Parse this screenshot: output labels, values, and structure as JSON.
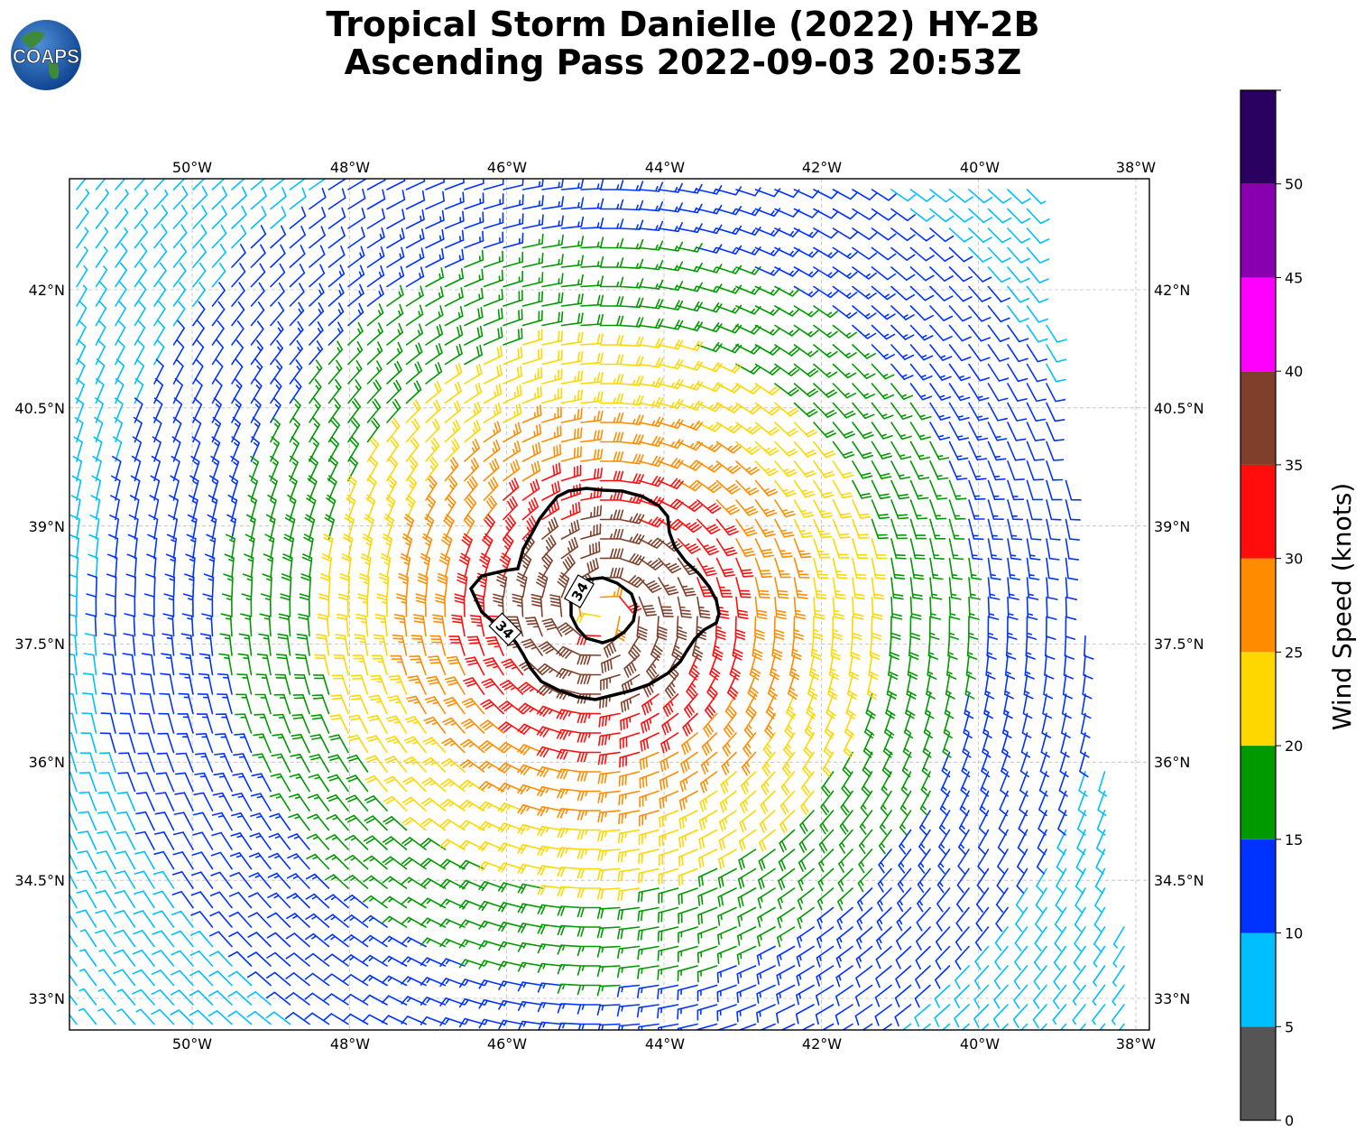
{
  "title": {
    "line1": "Tropical Storm Danielle (2022) HY-2B",
    "line2": "Ascending Pass 2022-09-03 20:53Z"
  },
  "logo": {
    "text": "COAPS"
  },
  "map": {
    "lon_ticks": [
      "50°W",
      "48°W",
      "46°W",
      "44°W",
      "42°W",
      "40°W",
      "38°W"
    ],
    "lat_ticks": [
      "42°N",
      "40.5°N",
      "39°N",
      "37.5°N",
      "36°N",
      "34.5°N",
      "33°N"
    ],
    "contour_labels": [
      "34",
      "34"
    ],
    "storm_center": {
      "lon": -44.8,
      "lat": 37.9
    }
  },
  "colorbar": {
    "label": "Wind Speed (knots)",
    "tick_labels": [
      "0",
      "5",
      "10",
      "15",
      "20",
      "25",
      "30",
      "35",
      "40",
      "45",
      "50"
    ],
    "colors": [
      "#555555",
      "#00bfff",
      "#0033ff",
      "#009900",
      "#ffd700",
      "#ff8c00",
      "#ff0d0d",
      "#7f3f2a",
      "#ff00ff",
      "#8800b0",
      "#2a0060"
    ]
  }
}
